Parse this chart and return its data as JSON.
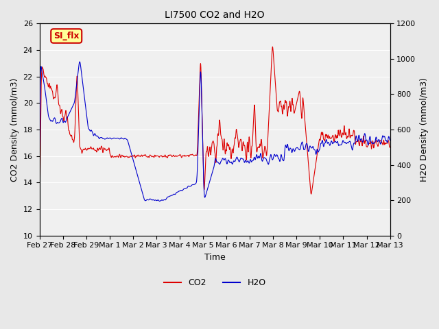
{
  "title": "LI7500 CO2 and H2O",
  "xlabel": "Time",
  "ylabel_left": "CO2 Density (mmol/m3)",
  "ylabel_right": "H2O Density (mmol/m3)",
  "ylim_left": [
    10,
    26
  ],
  "ylim_right": [
    0,
    1200
  ],
  "yticks_left": [
    10,
    12,
    14,
    16,
    18,
    20,
    22,
    24,
    26
  ],
  "yticks_right": [
    0,
    200,
    400,
    600,
    800,
    1000,
    1200
  ],
  "annotation_text": "SI_flx",
  "annotation_bg": "#ffff99",
  "annotation_border": "#cc0000",
  "co2_color": "#dd0000",
  "h2o_color": "#0000cc",
  "bg_color": "#e8e8e8",
  "plot_bg": "#f0f0f0",
  "grid_color": "#ffffff",
  "xtick_labels": [
    "Feb 27",
    "Feb 28",
    "Feb 29",
    "Mar 1",
    "Mar 2",
    "Mar 3",
    "Mar 4",
    "Mar 5",
    "Mar 6",
    "Mar 7",
    "Mar 8",
    "Mar 9",
    "Mar 10",
    "Mar 11",
    "Mar 12",
    "Mar 13"
  ],
  "legend_co2": "CO2",
  "legend_h2o": "H2O"
}
